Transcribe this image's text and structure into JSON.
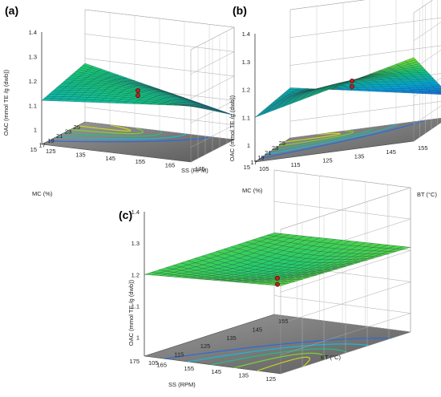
{
  "chart_data": [
    {
      "type": "surface3d",
      "panel_label": "(a)",
      "zlabel": "OAC (mmol TE /g (dwb))",
      "z_ticks": [
        "1",
        "1.1",
        "1.2",
        "1.3",
        "1.4"
      ],
      "x_label": "MC (%)",
      "x_ticks": [
        "15",
        "17",
        "19",
        "21",
        "23",
        "25"
      ],
      "y_label": "SS (RPM)",
      "y_ticks": [
        "125",
        "135",
        "145",
        "155",
        "165",
        "175"
      ],
      "surface_corner_values": {
        "x_min_y_min": 1.12,
        "x_min_y_max": 1.17,
        "x_max_y_min": 1.18,
        "x_max_y_max": 1.04
      },
      "center_points": [
        1.15,
        1.13
      ]
    },
    {
      "type": "surface3d",
      "panel_label": "(b)",
      "zlabel": "OAC (mmol TE /g (dwb))",
      "z_ticks": [
        "1",
        "1.1",
        "1.2",
        "1.3",
        "1.4"
      ],
      "x_label": "MC (%)",
      "x_ticks": [
        "15",
        "17",
        "19",
        "21",
        "23",
        "25"
      ],
      "y_label": "BT (°C)",
      "y_ticks": [
        "105",
        "115",
        "125",
        "135",
        "145",
        "155"
      ],
      "surface_corner_values": {
        "x_min_y_min": 1.1,
        "x_min_y_max": 1.24,
        "x_max_y_min": 1.12,
        "x_max_y_max": 1.02
      },
      "center_points": [
        1.15,
        1.13
      ]
    },
    {
      "type": "surface3d",
      "panel_label": "(c)",
      "zlabel": "OAC (mmol TE /g (dwb))",
      "z_ticks": [
        "1",
        "1.1",
        "1.2",
        "1.3",
        "1.4"
      ],
      "x_label": "SS (RPM)",
      "x_ticks": [
        "175",
        "165",
        "155",
        "145",
        "135",
        "125"
      ],
      "y_label": "BT (°C)",
      "y_ticks": [
        "105",
        "115",
        "125",
        "135",
        "145",
        "155"
      ],
      "surface_corner_values": {
        "x_min_y_min": 1.2,
        "x_min_y_max": 1.2,
        "x_max_y_min": 1.22,
        "x_max_y_max": 1.21
      },
      "center_points": [
        1.15,
        1.13
      ]
    }
  ]
}
